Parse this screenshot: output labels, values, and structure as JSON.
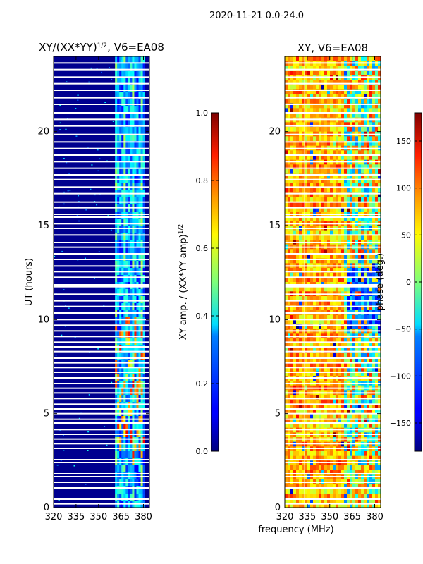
{
  "figure": {
    "suptitle": "2020-11-21 0.0-24.0",
    "shared_xlabel": "frequency (MHz)"
  },
  "chart_data": [
    {
      "type": "heatmap",
      "title_main": "XY/(XX*YY)",
      "title_exp": "1/2",
      "title_rest": ", V6=EA08",
      "ylabel": "UT (hours)",
      "xlim": [
        320,
        384
      ],
      "ylim": [
        0,
        24
      ],
      "xticks": [
        "320",
        "335",
        "350",
        "365",
        "380"
      ],
      "xtick_values": [
        320,
        335,
        350,
        365,
        380
      ],
      "yticks": [
        "0",
        "5",
        "10",
        "15",
        "20"
      ],
      "ytick_values": [
        0,
        5,
        10,
        15,
        20
      ],
      "colormap": "jet",
      "colorbar": {
        "label_main": "XY amp. / (XX*YY amp)",
        "label_exp": "1/2",
        "range": [
          0.0,
          1.0
        ],
        "ticks": [
          "0.0",
          "0.2",
          "0.4",
          "0.6",
          "0.8",
          "1.0"
        ],
        "tick_values": [
          0.0,
          0.2,
          0.4,
          0.6,
          0.8,
          1.0
        ]
      },
      "description_values": {
        "background_level": 0.08,
        "bright_band_mhz": [
          361,
          381
        ],
        "bright_band_level": 0.45
      }
    },
    {
      "type": "heatmap",
      "title_main": "XY, V6=EA08",
      "ylabel": "",
      "xlim": [
        320,
        384
      ],
      "ylim": [
        0,
        24
      ],
      "xticks": [
        "320",
        "335",
        "350",
        "365",
        "380"
      ],
      "xtick_values": [
        320,
        335,
        350,
        365,
        380
      ],
      "yticks": [
        "0",
        "5",
        "10",
        "15",
        "20"
      ],
      "ytick_values": [
        0,
        5,
        10,
        15,
        20
      ],
      "colormap": "jet",
      "colorbar": {
        "label_main": "phase (deg.)",
        "range": [
          -180,
          180
        ],
        "ticks": [
          "−150",
          "−100",
          "−50",
          "0",
          "50",
          "100",
          "150"
        ],
        "tick_values": [
          -150,
          -100,
          -50,
          0,
          50,
          100,
          150
        ]
      }
    }
  ],
  "flagged_ut_hours": [
    0.2,
    0.45,
    1.05,
    1.35,
    1.65,
    1.8,
    2.4,
    2.55,
    3.15,
    3.4,
    3.65,
    3.9,
    4.15,
    4.5,
    4.7,
    5.0,
    5.25,
    5.5,
    5.8,
    6.1,
    6.35,
    6.6,
    6.9,
    7.2,
    7.45,
    7.7,
    7.95,
    8.3,
    8.55,
    8.8,
    9.1,
    9.4,
    9.7,
    10.0,
    10.35,
    10.7,
    11.0,
    11.35,
    11.75,
    11.85,
    12.25,
    12.55,
    12.85,
    13.2,
    13.5,
    13.85,
    14.1,
    14.5,
    14.85,
    15.1,
    15.45,
    15.6,
    15.95,
    16.25,
    16.7,
    17.05,
    17.45,
    17.7,
    18.05,
    18.4,
    18.75,
    19.1,
    19.45,
    19.85,
    20.3,
    20.65,
    21.0,
    21.45,
    21.8,
    22.2,
    22.55,
    22.9,
    23.3,
    23.65
  ]
}
